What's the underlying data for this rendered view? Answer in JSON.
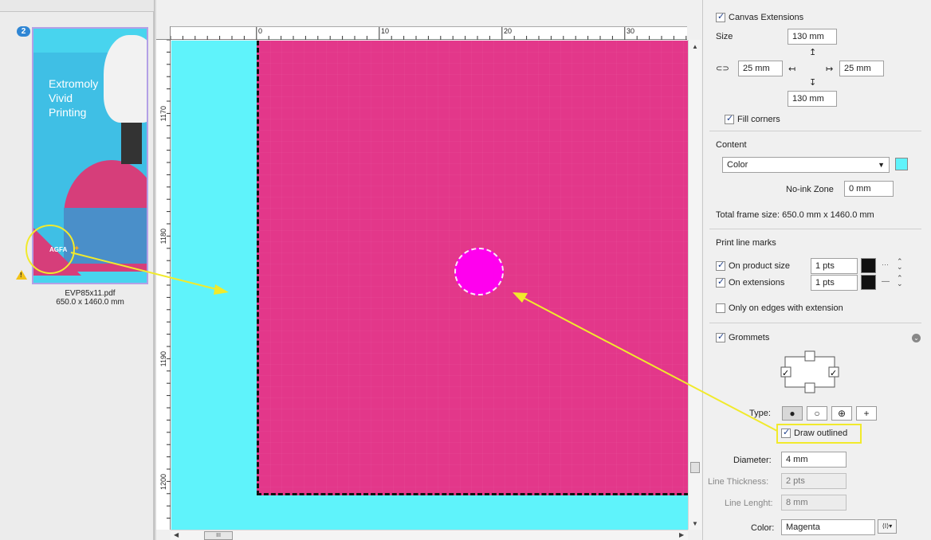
{
  "thumbnail": {
    "badge": "2",
    "lines": [
      "Extromoly",
      "Vivid",
      "Printing"
    ],
    "logo": "AGFA",
    "file_name": "EVP85x11.pdf",
    "file_size": "650.0 x 1460.0 mm"
  },
  "ruler": {
    "h_labels": [
      "0",
      "10",
      "20",
      "30"
    ],
    "v_labels": [
      "1170",
      "1180",
      "1190",
      "1200"
    ]
  },
  "canvas_ext": {
    "title": "Canvas Extensions",
    "checked": true,
    "size_label": "Size",
    "top": "130 mm",
    "left": "25 mm",
    "right": "25 mm",
    "bottom": "130 mm",
    "fill_corners_label": "Fill corners",
    "fill_corners_checked": true
  },
  "content": {
    "title": "Content",
    "type": "Color",
    "swatch_color": "#5ff3fb",
    "no_ink_label": "No-ink Zone",
    "no_ink_value": "0 mm",
    "total_frame_label": "Total frame size:",
    "total_frame_value": "650.0 mm x 1460.0 mm"
  },
  "print_line": {
    "title": "Print line marks",
    "product_label": "On product size",
    "product_value": "1 pts",
    "extensions_label": "On extensions",
    "extensions_value": "1 pts",
    "edges_label": "Only on edges with extension"
  },
  "grommets": {
    "title": "Grommets",
    "type_label": "Type:",
    "type_options": [
      "●",
      "○",
      "⊕",
      "+"
    ],
    "draw_outlined_label": "Draw outlined",
    "diameter_label": "Diameter:",
    "diameter_value": "4 mm",
    "line_thickness_label": "Line Thickness:",
    "line_thickness_value": "2 pts",
    "line_length_label": "Line Lenght:",
    "line_length_value": "8 mm",
    "color_label": "Color:",
    "color_value": "Magenta"
  },
  "colors": {
    "cyan": "#5ff3fb",
    "pink": "#e3378a",
    "magenta": "#ff00ee",
    "annotation": "#f1ea2c"
  }
}
